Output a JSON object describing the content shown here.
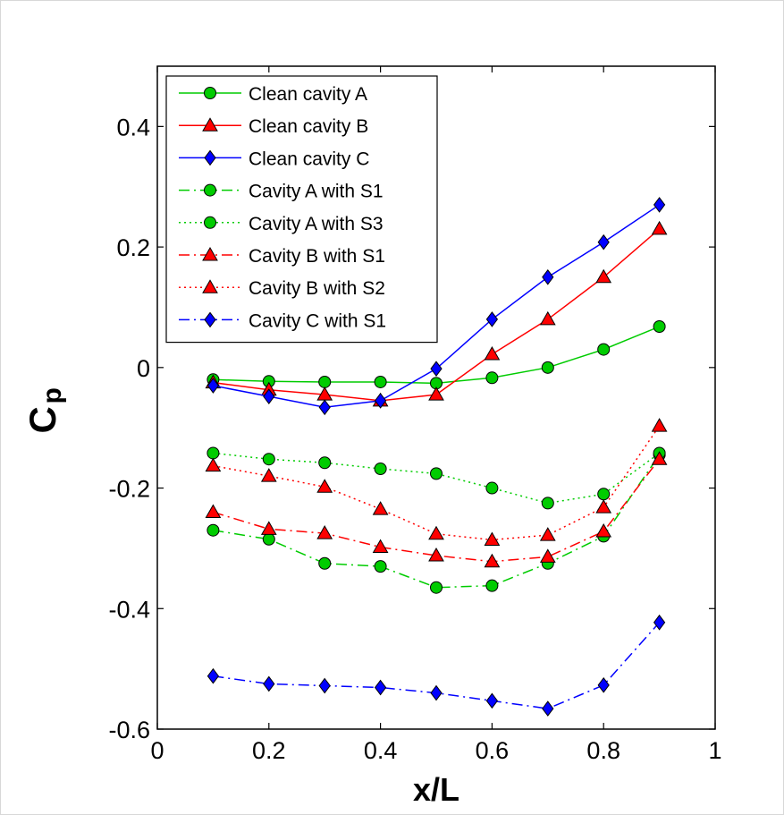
{
  "chart_data": {
    "type": "line",
    "title": "",
    "xlabel": "x/L",
    "ylabel": "C",
    "ylabel_subscript": "p",
    "xlim": [
      0,
      1
    ],
    "ylim": [
      -0.6,
      0.5
    ],
    "xticks": [
      0,
      0.2,
      0.4,
      0.6,
      0.8,
      1
    ],
    "xtick_labels": [
      "0",
      "0.2",
      "0.4",
      "0.6",
      "0.8",
      "1"
    ],
    "yticks": [
      -0.6,
      -0.4,
      -0.2,
      0,
      0.2,
      0.4
    ],
    "ytick_labels": [
      "-0.6",
      "-0.4",
      "-0.2",
      "0",
      "0.2",
      "0.4"
    ],
    "grid": false,
    "legend_position": "top-left",
    "x": [
      0.1,
      0.2,
      0.3,
      0.4,
      0.5,
      0.6,
      0.7,
      0.8,
      0.9
    ],
    "series": [
      {
        "name": "Clean cavity A",
        "color": "#00cc00",
        "marker": "circle",
        "linestyle": "solid",
        "values": [
          -0.02,
          -0.023,
          -0.024,
          -0.024,
          -0.026,
          -0.017,
          0.0,
          0.03,
          0.068
        ]
      },
      {
        "name": "Clean cavity B",
        "color": "#ff0000",
        "marker": "triangle",
        "linestyle": "solid",
        "values": [
          -0.025,
          -0.037,
          -0.045,
          -0.055,
          -0.045,
          0.022,
          0.08,
          0.15,
          0.23
        ]
      },
      {
        "name": "Clean cavity C",
        "color": "#0000ff",
        "marker": "diamond",
        "linestyle": "solid",
        "values": [
          -0.03,
          -0.048,
          -0.066,
          -0.055,
          -0.002,
          0.08,
          0.15,
          0.208,
          0.27
        ]
      },
      {
        "name": "Cavity A with S1",
        "color": "#00cc00",
        "marker": "circle",
        "linestyle": "dashdot",
        "values": [
          -0.27,
          -0.285,
          -0.325,
          -0.33,
          -0.365,
          -0.362,
          -0.325,
          -0.28,
          -0.145
        ]
      },
      {
        "name": "Cavity A with S3",
        "color": "#00cc00",
        "marker": "circle",
        "linestyle": "dotted",
        "values": [
          -0.142,
          -0.152,
          -0.158,
          -0.168,
          -0.176,
          -0.2,
          -0.225,
          -0.21,
          -0.142
        ]
      },
      {
        "name": "Cavity B with S1",
        "color": "#ff0000",
        "marker": "triangle",
        "linestyle": "dashdot",
        "values": [
          -0.24,
          -0.268,
          -0.275,
          -0.298,
          -0.312,
          -0.322,
          -0.314,
          -0.272,
          -0.152
        ]
      },
      {
        "name": "Cavity B with S2",
        "color": "#ff0000",
        "marker": "triangle",
        "linestyle": "dotted",
        "values": [
          -0.163,
          -0.18,
          -0.198,
          -0.235,
          -0.276,
          -0.286,
          -0.278,
          -0.232,
          -0.097
        ]
      },
      {
        "name": "Cavity C with S1",
        "color": "#0000ff",
        "marker": "diamond",
        "linestyle": "dashdot",
        "values": [
          -0.512,
          -0.525,
          -0.528,
          -0.531,
          -0.54,
          -0.553,
          -0.566,
          -0.527,
          -0.423
        ]
      }
    ]
  }
}
